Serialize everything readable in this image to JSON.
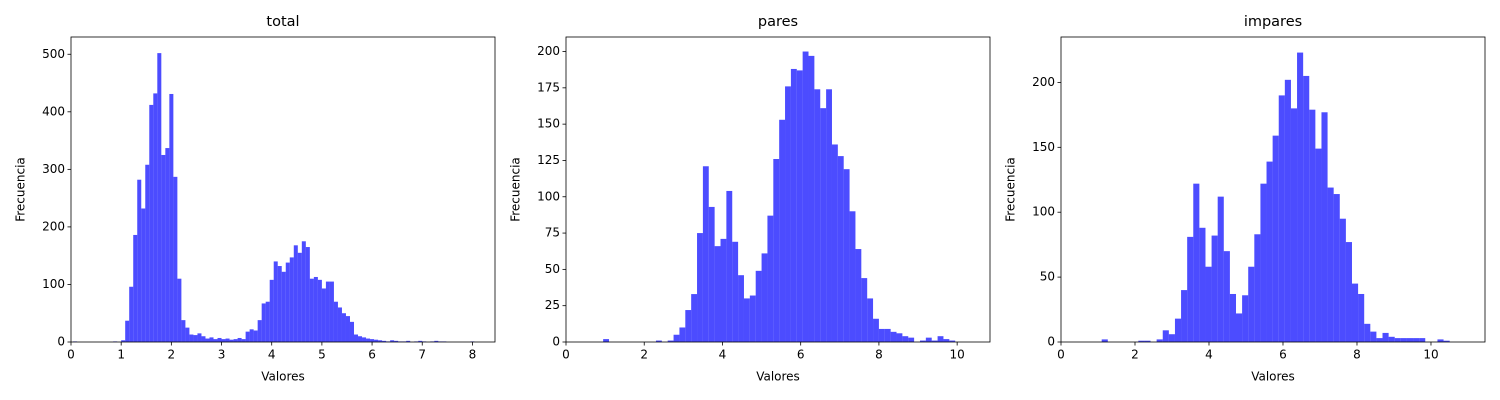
{
  "chart_data": [
    {
      "type": "histogram",
      "title": "total",
      "xlabel": "Valores",
      "ylabel": "Frecuencia",
      "color": "#0000ff",
      "alpha": 0.7,
      "bins": [
        0.04,
        0.12,
        0.2,
        0.28,
        0.36,
        0.44,
        0.52,
        0.6,
        0.68,
        0.76,
        0.84,
        0.92,
        1,
        1.08,
        1.16,
        1.24,
        1.32,
        1.4,
        1.48,
        1.56,
        1.64,
        1.72,
        1.8,
        1.88,
        1.96,
        2.04,
        2.12,
        2.2,
        2.28,
        2.36,
        2.44,
        2.52,
        2.6,
        2.68,
        2.76,
        2.84,
        2.92,
        3,
        3.08,
        3.16,
        3.24,
        3.32,
        3.4,
        3.48,
        3.56,
        3.64,
        3.72,
        3.8,
        3.88,
        3.96,
        4.04,
        4.12,
        4.2,
        4.28,
        4.36,
        4.44,
        4.52,
        4.6,
        4.68,
        4.76,
        4.84,
        4.92,
        5,
        5.08,
        5.16,
        5.24,
        5.32,
        5.4,
        5.48,
        5.56,
        5.64,
        5.72,
        5.8,
        5.88,
        5.96,
        6.04,
        6.12,
        6.2,
        6.28,
        6.36,
        6.44,
        6.52,
        6.6,
        6.68,
        6.76,
        6.84,
        6.92,
        7,
        7.08,
        7.16,
        7.24,
        7.32,
        7.4,
        7.48,
        7.56,
        7.64,
        7.72,
        7.8,
        7.88,
        7.96,
        8.04
      ],
      "counts": [
        1,
        0,
        0,
        0,
        0,
        0,
        0,
        0,
        0,
        0,
        1,
        0,
        3,
        37,
        96,
        186,
        282,
        232,
        308,
        412,
        432,
        502,
        325,
        337,
        431,
        287,
        110,
        38,
        25,
        13,
        12,
        15,
        10,
        6,
        8,
        5,
        7,
        5,
        6,
        4,
        5,
        7,
        5,
        18,
        22,
        20,
        38,
        67,
        70,
        108,
        140,
        132,
        122,
        138,
        147,
        168,
        155,
        175,
        165,
        110,
        113,
        108,
        93,
        105,
        105,
        70,
        60,
        50,
        45,
        35,
        13,
        10,
        8,
        6,
        5,
        4,
        3,
        2,
        1,
        3,
        2,
        1,
        1,
        2,
        0,
        1,
        2,
        1,
        0,
        1,
        2,
        1,
        1,
        0,
        0,
        0,
        0,
        0,
        0,
        1
      ],
      "xlim": [
        0,
        8.45
      ],
      "ylim": [
        0,
        530
      ],
      "xticks": [
        0,
        1,
        2,
        3,
        4,
        5,
        6,
        7,
        8
      ],
      "yticks": [
        0,
        100,
        200,
        300,
        400,
        500
      ]
    },
    {
      "type": "histogram",
      "title": "pares",
      "xlabel": "Valores",
      "ylabel": "Frecuencia",
      "color": "#0000ff",
      "alpha": 0.7,
      "bins": [
        0.95,
        1.1,
        1.25,
        1.4,
        1.55,
        1.7,
        1.85,
        2,
        2.15,
        2.3,
        2.45,
        2.6,
        2.75,
        2.9,
        3.05,
        3.2,
        3.35,
        3.5,
        3.65,
        3.8,
        3.95,
        4.1,
        4.25,
        4.4,
        4.55,
        4.7,
        4.85,
        5,
        5.15,
        5.3,
        5.45,
        5.6,
        5.75,
        5.9,
        6.05,
        6.2,
        6.35,
        6.5,
        6.65,
        6.8,
        6.95,
        7.1,
        7.25,
        7.4,
        7.55,
        7.7,
        7.85,
        8,
        8.15,
        8.3,
        8.45,
        8.6,
        8.75,
        8.9,
        9.05,
        9.2,
        9.35,
        9.5,
        9.65,
        9.8,
        9.95
      ],
      "counts": [
        2,
        0,
        0,
        0,
        0,
        0,
        0,
        0,
        0,
        1,
        0,
        1,
        5,
        10,
        22,
        33,
        75,
        121,
        93,
        66,
        71,
        104,
        69,
        46,
        30,
        32,
        49,
        61,
        87,
        126,
        153,
        176,
        188,
        187,
        200,
        197,
        174,
        161,
        174,
        136,
        128,
        119,
        90,
        64,
        44,
        30,
        16,
        9,
        9,
        7,
        6,
        4,
        3,
        0,
        1,
        3,
        1,
        4,
        2,
        1
      ],
      "xlim": [
        0,
        10.84
      ],
      "ylim": [
        0,
        210
      ],
      "xticks": [
        0,
        2,
        4,
        6,
        8,
        10
      ],
      "yticks": [
        0,
        25,
        50,
        75,
        100,
        125,
        150,
        175,
        200
      ]
    },
    {
      "type": "histogram",
      "title": "impares",
      "xlabel": "Valores",
      "ylabel": "Frecuencia",
      "color": "#0000ff",
      "alpha": 0.7,
      "bins": [
        1.1,
        1.265,
        1.43,
        1.595,
        1.76,
        1.925,
        2.09,
        2.255,
        2.42,
        2.585,
        2.75,
        2.915,
        3.08,
        3.245,
        3.41,
        3.575,
        3.74,
        3.905,
        4.07,
        4.235,
        4.4,
        4.565,
        4.73,
        4.895,
        5.06,
        5.225,
        5.39,
        5.555,
        5.72,
        5.885,
        6.05,
        6.215,
        6.38,
        6.545,
        6.71,
        6.875,
        7.04,
        7.205,
        7.37,
        7.535,
        7.7,
        7.865,
        8.03,
        8.195,
        8.36,
        8.525,
        8.69,
        8.855,
        9.02,
        9.185,
        9.35,
        9.515,
        9.68,
        9.845,
        10.01,
        10.175,
        10.34,
        10.505
      ],
      "counts": [
        2,
        0,
        0,
        0,
        0,
        0,
        1,
        1,
        0,
        2,
        9,
        6,
        18,
        40,
        81,
        122,
        88,
        58,
        82,
        112,
        70,
        37,
        22,
        36,
        58,
        83,
        122,
        139,
        159,
        190,
        202,
        180,
        223,
        205,
        179,
        149,
        177,
        119,
        114,
        95,
        77,
        45,
        37,
        14,
        8,
        3,
        7,
        4,
        3,
        3,
        3,
        3,
        3,
        0,
        0,
        2,
        1
      ],
      "xlim": [
        0,
        11.46
      ],
      "ylim": [
        0,
        235
      ],
      "xticks": [
        0,
        2,
        4,
        6,
        8,
        10
      ],
      "yticks": [
        0,
        50,
        100,
        150,
        200
      ]
    }
  ]
}
